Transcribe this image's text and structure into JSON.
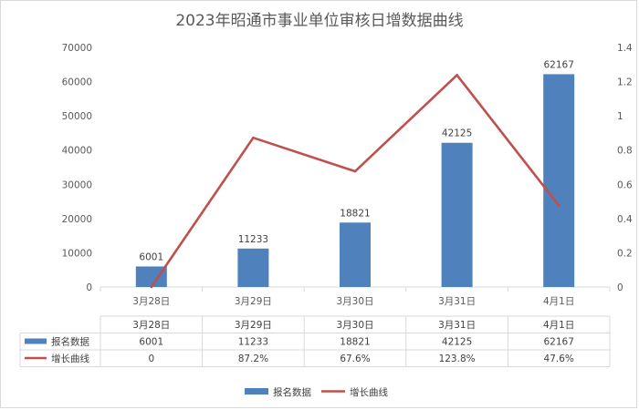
{
  "chart_data": {
    "type": "bar",
    "title": "2023年昭通市事业单位审核日增数据曲线",
    "categories": [
      "3月28日",
      "3月29日",
      "3月30日",
      "3月31日",
      "4月1日"
    ],
    "series": [
      {
        "name": "报名数据",
        "type": "bar",
        "axis": "left",
        "color": "#4f81bd",
        "values": [
          6001,
          11233,
          18821,
          42125,
          62167
        ]
      },
      {
        "name": "增长曲线",
        "type": "line",
        "axis": "right",
        "color": "#c0504d",
        "values": [
          0,
          0.872,
          0.676,
          1.238,
          0.476
        ],
        "table_labels": [
          "0",
          "87.2%",
          "67.6%",
          "123.8%",
          "47.6%"
        ]
      }
    ],
    "ylim_left": [
      0,
      70000
    ],
    "yticks_left": [
      "0",
      "10000",
      "20000",
      "30000",
      "40000",
      "50000",
      "60000",
      "70000"
    ],
    "ylim_right": [
      0,
      1.4
    ],
    "yticks_right": [
      "0",
      "0.2",
      "0.4",
      "0.6",
      "0.8",
      "1",
      "1.2",
      "1.4"
    ],
    "data_table": true,
    "legend_position": "bottom"
  }
}
